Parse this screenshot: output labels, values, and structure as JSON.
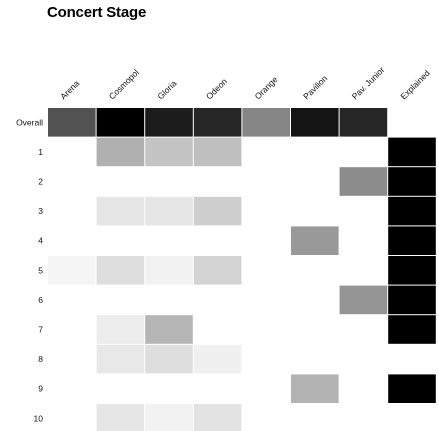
{
  "chart_data": {
    "type": "heatmap",
    "title": "Concert Stage",
    "columns": [
      "Arena",
      "Cosmopol",
      "Gloria",
      "Odeon",
      "Orange",
      "Pavilion",
      "Pav. Junior",
      "Explained"
    ],
    "rows": [
      "Overall",
      "1",
      "2",
      "3",
      "4",
      "5",
      "6",
      "7",
      "8",
      "9",
      "10"
    ],
    "color_scale": "white-to-black",
    "values": [
      [
        0.68,
        1.0,
        0.89,
        0.85,
        0.48,
        0.92,
        0.85,
        null
      ],
      [
        null,
        0.31,
        0.23,
        0.25,
        null,
        null,
        null,
        1.0
      ],
      [
        null,
        null,
        null,
        null,
        null,
        null,
        0.45,
        1.0
      ],
      [
        null,
        0.1,
        0.1,
        0.19,
        null,
        null,
        null,
        1.0
      ],
      [
        null,
        null,
        null,
        null,
        null,
        0.4,
        null,
        1.0
      ],
      [
        0.04,
        0.13,
        0.05,
        0.17,
        null,
        null,
        null,
        1.0
      ],
      [
        null,
        null,
        null,
        null,
        null,
        null,
        0.42,
        1.0
      ],
      [
        null,
        0.07,
        0.29,
        null,
        null,
        null,
        null,
        1.0
      ],
      [
        null,
        0.09,
        0.13,
        0.06,
        null,
        null,
        null,
        null
      ],
      [
        null,
        null,
        null,
        null,
        null,
        0.3,
        null,
        1.0
      ],
      [
        null,
        0.1,
        0.05,
        0.11,
        null,
        null,
        null,
        null
      ]
    ]
  }
}
